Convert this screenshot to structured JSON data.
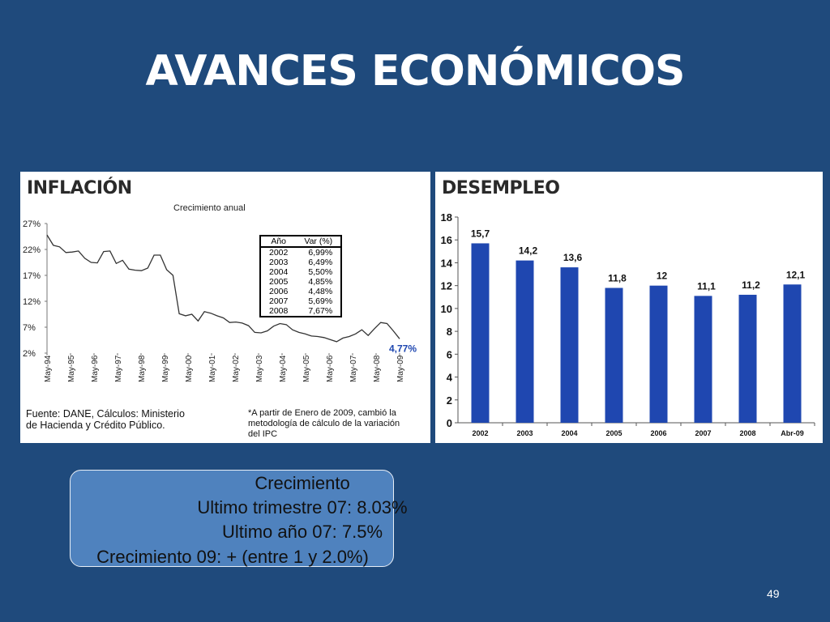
{
  "slide": {
    "title": "AVANCES ECONÓMICOS",
    "page_number": "49",
    "background_color": "#1f4a7c"
  },
  "inflation_panel": {
    "title": "INFLACIÓN",
    "subtitle": "Crecimiento anual",
    "table_headers": [
      "Año",
      "Var (%)"
    ],
    "table_rows": [
      [
        "2002",
        "6,99%"
      ],
      [
        "2003",
        "6,49%"
      ],
      [
        "2004",
        "5,50%"
      ],
      [
        "2005",
        "4,85%"
      ],
      [
        "2006",
        "4,48%"
      ],
      [
        "2007",
        "5,69%"
      ],
      [
        "2008",
        "7,67%"
      ]
    ],
    "source_line1": "Fuente: DANE, Cálculos: Ministerio",
    "source_line2": "de Hacienda y Crédito Público.",
    "footnote_line1": "*A partir de Enero de 2009, cambió la",
    "footnote_line2": "metodología de cálculo de la variación",
    "footnote_line3": "del IPC",
    "last_value_label": "4,77%"
  },
  "unemployment_panel": {
    "title": "DESEMPLEO"
  },
  "growth_box": {
    "line1": "Crecimiento",
    "line2": "Ultimo trimestre 07: 8.03%",
    "line3": "Ultimo año 07: 7.5%",
    "line4": "Crecimiento 09:  +  (entre 1 y 2.0%)"
  },
  "chart_data": [
    {
      "type": "line",
      "title": "Crecimiento anual",
      "x_ticks": [
        "May-94",
        "May-95",
        "May-96",
        "May-97",
        "May-98",
        "May-99",
        "May-00",
        "May-01",
        "May-02",
        "May-03",
        "May-04",
        "May-05",
        "May-06",
        "May-07",
        "May-08",
        "May-09"
      ],
      "y_ticks": [
        "27%",
        "22%",
        "17%",
        "12%",
        "7%",
        "2%"
      ],
      "ylim": [
        2,
        27
      ],
      "series": [
        {
          "values": [
            24.8,
            22.8,
            22.5,
            21.4,
            21.5,
            21.7,
            20.3,
            19.5,
            19.4,
            21.6,
            21.7,
            19.3,
            19.9,
            18.2,
            18.0,
            17.9,
            18.4,
            20.9,
            20.9,
            18.1,
            17.0,
            9.6,
            9.2,
            9.5,
            8.2,
            10.0,
            9.7,
            9.2,
            8.8,
            7.9,
            8.0,
            7.8,
            7.3,
            6.0,
            5.9,
            6.3,
            7.2,
            7.7,
            7.5,
            6.5,
            6.0,
            5.7,
            5.3,
            5.2,
            5.0,
            4.6,
            4.2,
            4.9,
            5.2,
            5.7,
            6.5,
            5.4,
            6.7,
            7.9,
            7.7,
            6.3,
            4.77
          ]
        }
      ],
      "annotation": "4,77%",
      "line_color": "#333333",
      "grid": false
    },
    {
      "type": "bar",
      "categories": [
        "2002",
        "2003",
        "2004",
        "2005",
        "2006",
        "2007",
        "2008",
        "Abr-09"
      ],
      "values": [
        15.7,
        14.2,
        13.6,
        11.8,
        12,
        11.1,
        11.2,
        12.1
      ],
      "value_labels": [
        "15,7",
        "14,2",
        "13,6",
        "11,8",
        "12",
        "11,1",
        "11,2",
        "12,1"
      ],
      "y_ticks": [
        "0",
        "2",
        "4",
        "6",
        "8",
        "10",
        "12",
        "14",
        "16",
        "18"
      ],
      "ylim": [
        0,
        18
      ],
      "bar_color": "#1f47b0",
      "grid": false
    }
  ]
}
